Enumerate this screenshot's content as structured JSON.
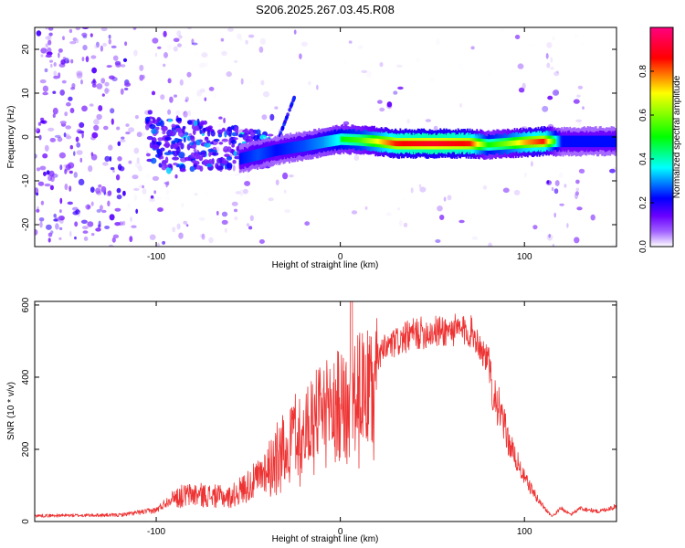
{
  "title": "S206.2025.267.03.45.R08",
  "chart_data": [
    {
      "type": "heatmap",
      "name": "spectrogram",
      "xlabel": "Height of straight line (km)",
      "ylabel": "Frequency (Hz)",
      "xlim": [
        -166,
        150
      ],
      "ylim": [
        -25,
        25
      ],
      "x_ticks": [
        -100,
        0,
        100
      ],
      "y_ticks": [
        -20,
        -10,
        0,
        10,
        20
      ],
      "colorbar": {
        "label": "Normalized spectral amplitude",
        "range": [
          0,
          1
        ],
        "ticks": [
          0.0,
          0.2,
          0.4,
          0.6,
          0.8
        ],
        "tick_labels": [
          "0.0",
          "0.2",
          "0.4",
          "0.6",
          "0.8"
        ],
        "colormap": [
          "#ffffff",
          "#6a00ff",
          "#0000ff",
          "#00ffff",
          "#00ff00",
          "#ffff00",
          "#ff0000",
          "#ff0080"
        ]
      },
      "ridge": {
        "x": [
          -55,
          -45,
          -35,
          -20,
          -10,
          0,
          10,
          20,
          30,
          50,
          70,
          80,
          90,
          100,
          110,
          120,
          150
        ],
        "frequency": [
          -5,
          -4,
          -3,
          -2,
          -1.2,
          -0.5,
          -0.7,
          -1,
          -1.5,
          -1.5,
          -1.5,
          -1.8,
          -1.5,
          -1.2,
          -1,
          -1,
          -1
        ],
        "amplitude": [
          0.3,
          0.35,
          0.3,
          0.35,
          0.4,
          0.5,
          0.55,
          0.7,
          0.85,
          0.9,
          0.85,
          0.5,
          0.6,
          0.75,
          0.85,
          0.3,
          0.3
        ]
      }
    },
    {
      "type": "line",
      "name": "snr",
      "xlabel": "Height of straight line (km)",
      "ylabel": "SNR (10 * v/v)",
      "xlim": [
        -166,
        150
      ],
      "ylim": [
        0,
        610
      ],
      "x_ticks": [
        -100,
        0,
        100
      ],
      "y_ticks": [
        0,
        200,
        400,
        600
      ],
      "color": "#ee3333",
      "envelope": {
        "x": [
          -166,
          -120,
          -100,
          -90,
          -80,
          -60,
          -45,
          -35,
          -25,
          -15,
          -5,
          5,
          15,
          25,
          40,
          60,
          72,
          80,
          85,
          92,
          100,
          108,
          115,
          120,
          125,
          130,
          140,
          150
        ],
        "y": [
          18,
          20,
          35,
          80,
          90,
          80,
          140,
          220,
          300,
          340,
          380,
          420,
          440,
          500,
          540,
          550,
          545,
          460,
          360,
          230,
          130,
          60,
          15,
          40,
          20,
          40,
          30,
          45
        ]
      }
    }
  ]
}
